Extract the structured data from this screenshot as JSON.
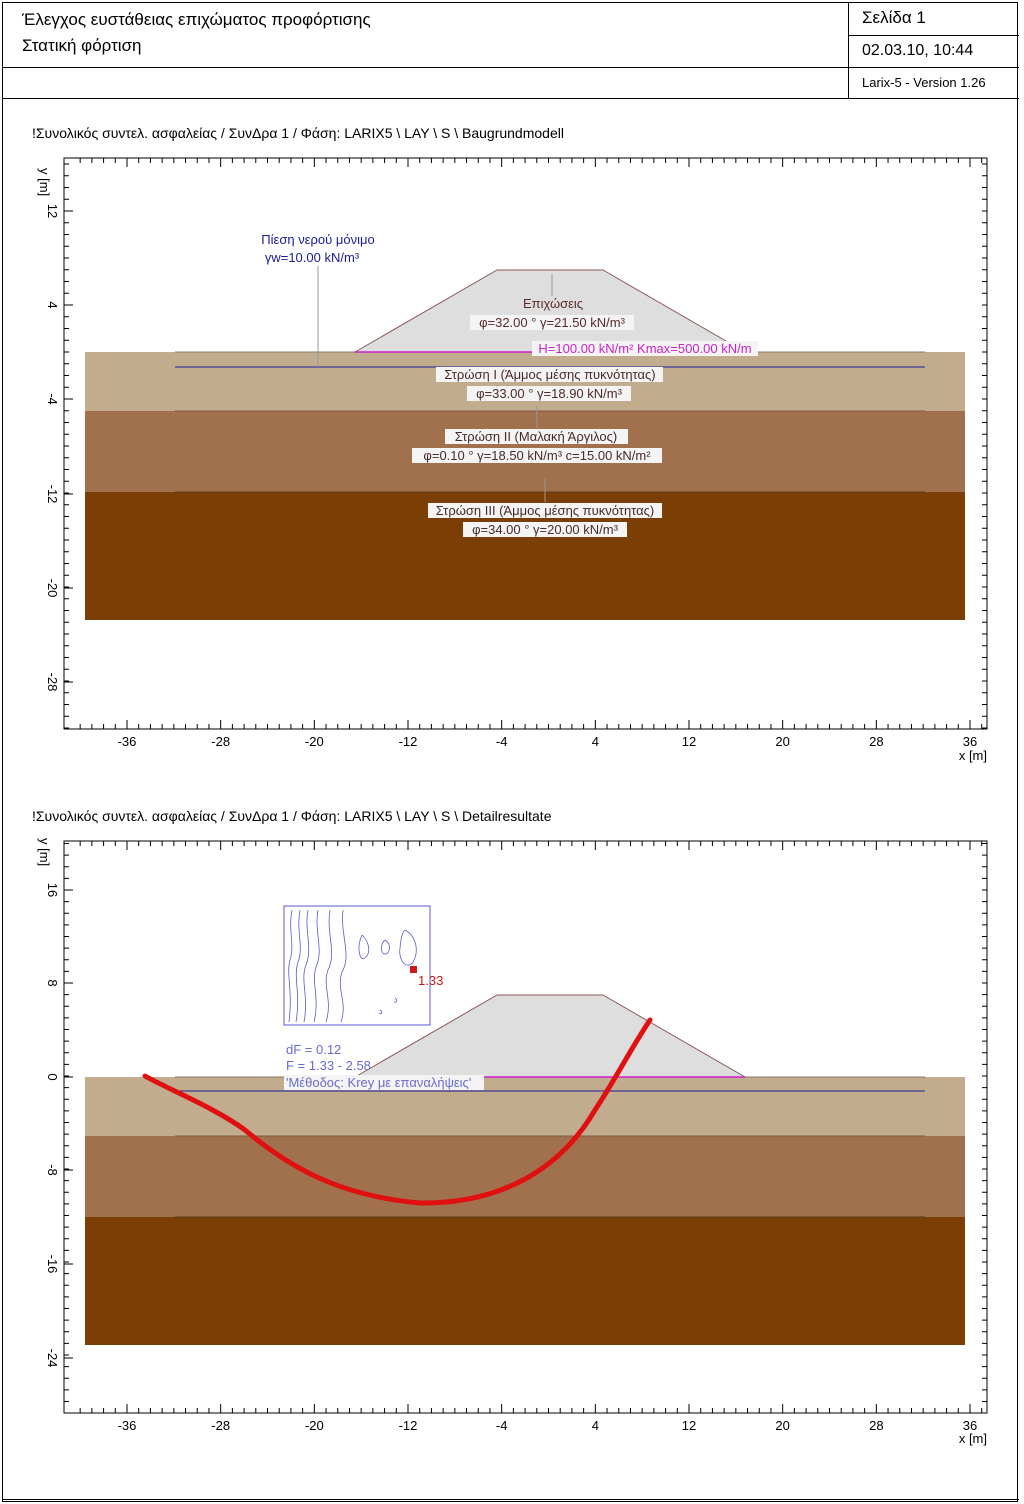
{
  "header": {
    "title_line1": "Έλεγχος ευστάθειας επιχώματος προφόρτισης",
    "title_line2": "Στατική φόρτιση",
    "page_label": "Σελίδα 1",
    "datetime": "02.03.10, 10:44",
    "software": "Larix-5 - Version 1.26"
  },
  "colors": {
    "fill_embankment": "#dedede",
    "layer1": "#c1ac8e",
    "layer2": "#a1714d",
    "layer3": "#7b3f06",
    "water_line": "#1c1c9c",
    "load_line": "#cc22cc",
    "slip_circle": "#e01010",
    "stats_text": "#6a6ad0"
  },
  "plot1": {
    "title": "!Συνολικός συντελ. ασφαλείας / ΣυνΔρα 1 / Φάση: LARIX5 \\ LAY \\ S \\ Baugrundmodell",
    "ylabel": "y [m]",
    "xlabel": "x [m]",
    "yticks": [
      "12",
      "4",
      "-4",
      "-12",
      "-20",
      "-28"
    ],
    "xticks": [
      "-36",
      "-28",
      "-20",
      "-12",
      "-4",
      "4",
      "12",
      "20",
      "28",
      "36"
    ],
    "water_title": "Πίεση νερού μόνιμο",
    "water_gamma": "γw=10.00 kN/m³",
    "fill_name": "Επιχώσεις",
    "fill_props": "φ=32.00 ° γ=21.50 kN/m³",
    "load": "H=100.00 kN/m² Kmax=500.00 kN/m",
    "layer1_name": "Στρώση I (Άμμος μέσης πυκνότητας)",
    "layer1_props": "φ=33.00 ° γ=18.90 kN/m³",
    "layer2_name": "Στρώση II (Μαλακή Άργιλος)",
    "layer2_props": "φ=0.10 ° γ=18.50 kN/m³ c=15.00 kN/m²",
    "layer3_name": "Στρώση III (Άμμος μέσης πυκνότητας)",
    "layer3_props": "φ=34.00 ° γ=20.00 kN/m³"
  },
  "plot2": {
    "title": "!Συνολικός συντελ. ασφαλείας / ΣυνΔρα 1 / Φάση: LARIX5 \\ LAY \\ S \\ Detailresultate",
    "ylabel": "y [m]",
    "xlabel": "x [m]",
    "yticks": [
      "16",
      "8",
      "0",
      "-8",
      "-16",
      "-24"
    ],
    "xticks": [
      "-36",
      "-28",
      "-20",
      "-12",
      "-4",
      "4",
      "12",
      "20",
      "28",
      "36"
    ],
    "min_factor": "1.33",
    "stat_dF": "dF = 0.12",
    "stat_F": "F = 1.33 - 2.58",
    "stat_method": "'Μέθοδος: Krey με επαναλήψεις'"
  }
}
